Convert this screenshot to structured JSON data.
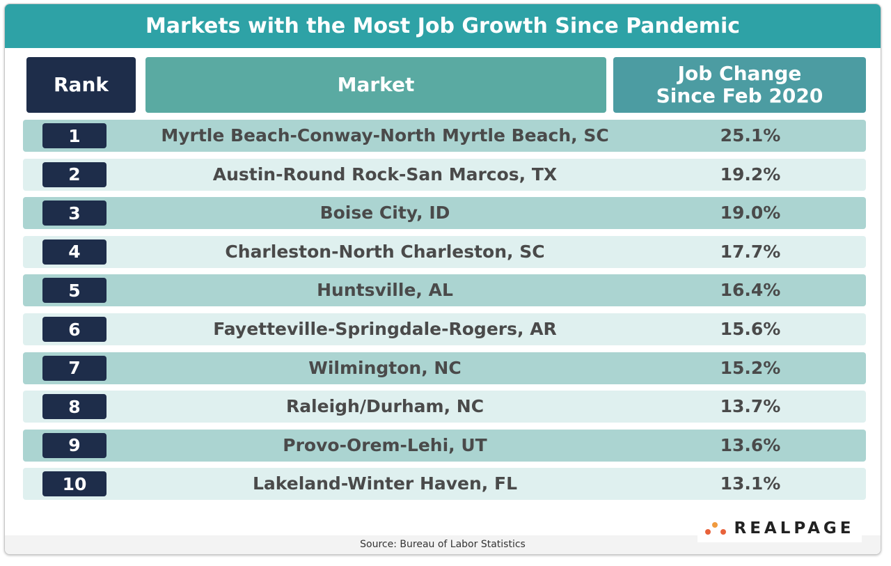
{
  "header": {
    "title": "Markets with the Most Job Growth Since Pandemic"
  },
  "table": {
    "columns": [
      "Rank",
      "Market",
      "Job Change\nSince Feb 2020"
    ],
    "rows": [
      [
        1,
        "Myrtle Beach-Conway-North Myrtle Beach, SC",
        "25.1%"
      ],
      [
        2,
        "Austin-Round Rock-San Marcos, TX",
        "19.2%"
      ],
      [
        3,
        "Boise City, ID",
        "19.0%"
      ],
      [
        4,
        "Charleston-North Charleston, SC",
        "17.7%"
      ],
      [
        5,
        "Huntsville, AL",
        "16.4%"
      ],
      [
        6,
        "Fayetteville-Springdale-Rogers, AR",
        "15.6%"
      ],
      [
        7,
        "Wilmington, NC",
        "15.2%"
      ],
      [
        8,
        "Raleigh/Durham, NC",
        "13.7%"
      ],
      [
        9,
        "Provo-Orem-Lehi, UT",
        "13.6%"
      ],
      [
        10,
        "Lakeland-Winter Haven, FL",
        "13.1%"
      ]
    ]
  },
  "footer": {
    "source": "Source: Bureau of Labor Statistics",
    "logo": "REALPAGE"
  }
}
